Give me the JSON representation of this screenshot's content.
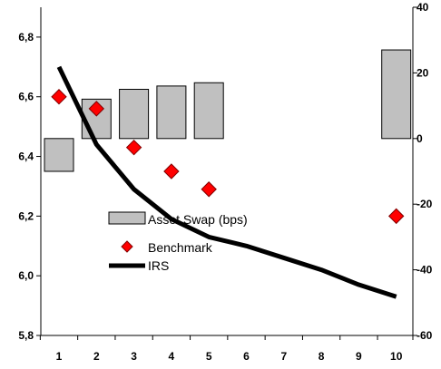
{
  "chart_data": {
    "type": "bar",
    "x_categories": [
      "1",
      "2",
      "3",
      "4",
      "5",
      "6",
      "7",
      "8",
      "9",
      "10"
    ],
    "y_left": {
      "min": 5.8,
      "max": 6.9,
      "ticks": [
        "5,8",
        "6,0",
        "6,2",
        "6,4",
        "6,6",
        "6,8"
      ],
      "tick_values": [
        5.8,
        6.0,
        6.2,
        6.4,
        6.6,
        6.8
      ]
    },
    "y_right": {
      "min": -60,
      "max": 40,
      "ticks": [
        "-60",
        "-40",
        "-20",
        "0",
        "20",
        "40"
      ],
      "tick_values": [
        -60,
        -40,
        -20,
        0,
        20,
        40
      ]
    },
    "grid": false,
    "legend_placement": "center-left",
    "series": [
      {
        "name": "Asset Swap (bps)",
        "kind": "bar",
        "axis": "right",
        "color": "#c0c0c0",
        "points": [
          {
            "x": 1,
            "value": -10
          },
          {
            "x": 2,
            "value": 12
          },
          {
            "x": 3,
            "value": 15
          },
          {
            "x": 4,
            "value": 16
          },
          {
            "x": 5,
            "value": 17
          },
          {
            "x": 10,
            "value": 27
          }
        ]
      },
      {
        "name": "Benchmark",
        "kind": "marker",
        "axis": "left",
        "color": "#ff0000",
        "points": [
          {
            "x": 1,
            "value": 6.6
          },
          {
            "x": 2,
            "value": 6.56
          },
          {
            "x": 3,
            "value": 6.43
          },
          {
            "x": 4,
            "value": 6.35
          },
          {
            "x": 5,
            "value": 6.29
          },
          {
            "x": 10,
            "value": 6.2
          }
        ]
      },
      {
        "name": "IRS",
        "kind": "line",
        "axis": "left",
        "color": "#000000",
        "points": [
          {
            "x": 1,
            "value": 6.7
          },
          {
            "x": 2,
            "value": 6.44
          },
          {
            "x": 3,
            "value": 6.29
          },
          {
            "x": 4,
            "value": 6.19
          },
          {
            "x": 5,
            "value": 6.13
          },
          {
            "x": 6,
            "value": 6.1
          },
          {
            "x": 7,
            "value": 6.06
          },
          {
            "x": 8,
            "value": 6.02
          },
          {
            "x": 9,
            "value": 5.97
          },
          {
            "x": 10,
            "value": 5.93
          }
        ]
      }
    ]
  }
}
